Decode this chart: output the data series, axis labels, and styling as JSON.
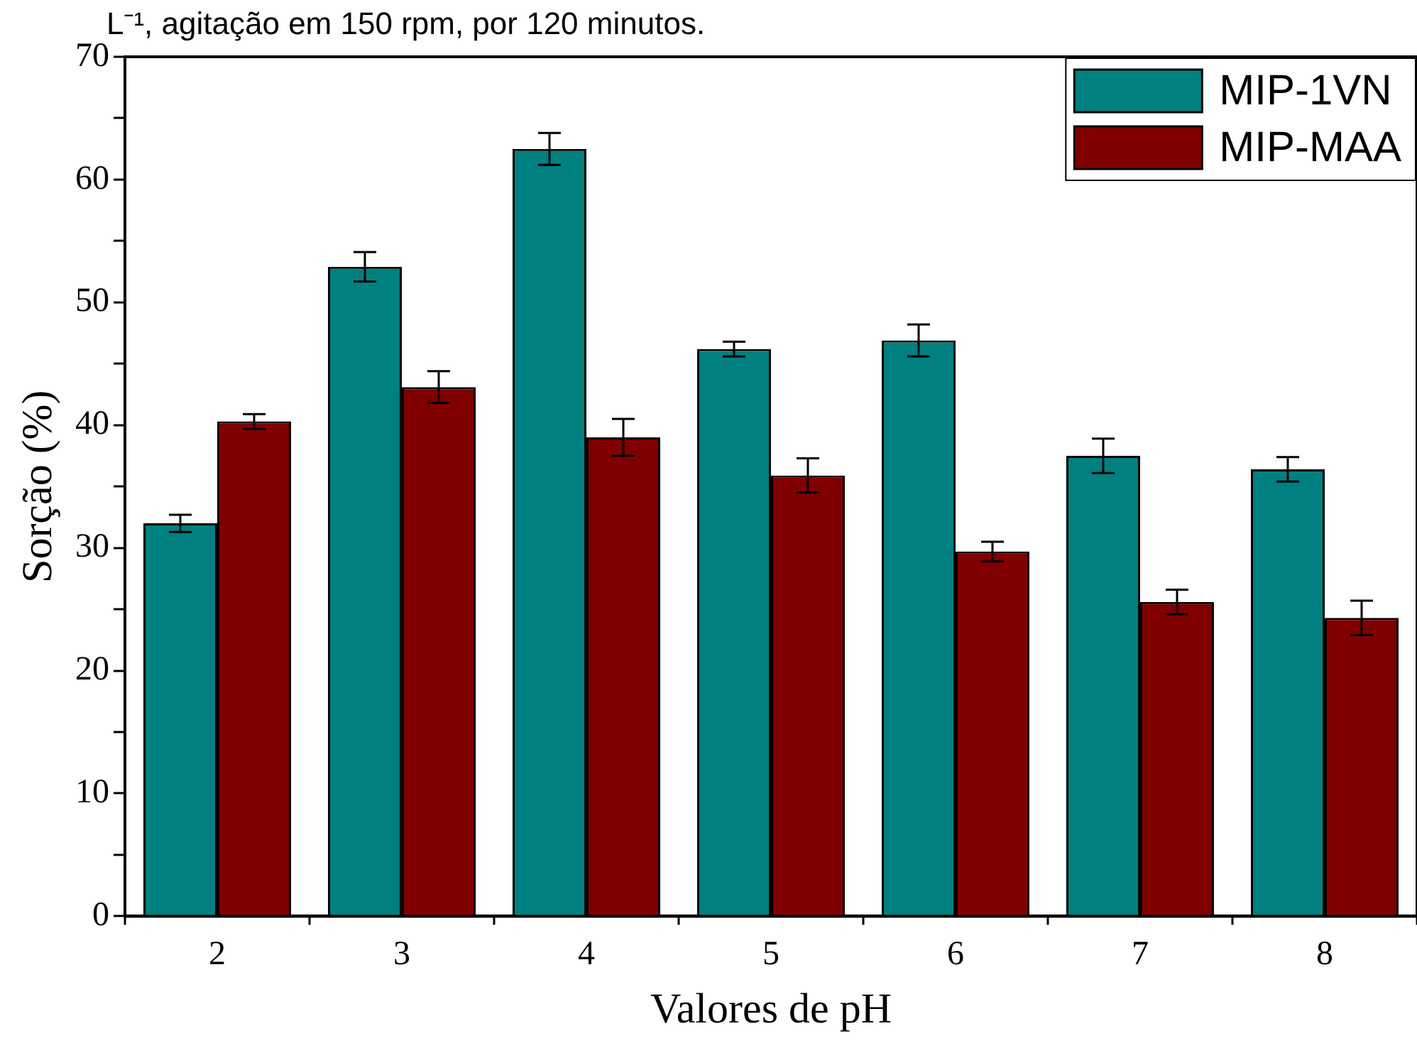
{
  "chart_data": {
    "type": "bar",
    "title": "L⁻¹, agitação em 150 rpm, por 120 minutos.",
    "xlabel": "Valores de pH",
    "ylabel": "Sorção (%)",
    "categories": [
      "2",
      "3",
      "4",
      "5",
      "6",
      "7",
      "8"
    ],
    "series": [
      {
        "name": "MIP-1VN",
        "color": "#008080",
        "values": [
          32,
          52.9,
          62.5,
          46.2,
          46.9,
          37.5,
          36.4
        ],
        "errors": [
          0.7,
          1.2,
          1.3,
          0.6,
          1.3,
          1.4,
          1.0
        ]
      },
      {
        "name": "MIP-MAA",
        "color": "#800000",
        "values": [
          40.3,
          43.1,
          39,
          35.9,
          29.7,
          25.6,
          24.3
        ],
        "errors": [
          0.6,
          1.3,
          1.5,
          1.4,
          0.8,
          1.0,
          1.4
        ]
      }
    ],
    "ylim": [
      0,
      70
    ],
    "yticks": [
      0,
      {
        "value": 5,
        "label": null
      },
      10,
      {
        "value": 15,
        "label": null
      },
      20,
      {
        "value": 25,
        "label": null
      },
      30,
      {
        "value": 35,
        "label": null
      },
      40,
      {
        "value": 45,
        "label": null
      },
      50,
      {
        "value": 55,
        "label": null
      },
      60,
      {
        "value": 65,
        "label": null
      },
      70
    ],
    "grid": false,
    "legend": "top right"
  }
}
